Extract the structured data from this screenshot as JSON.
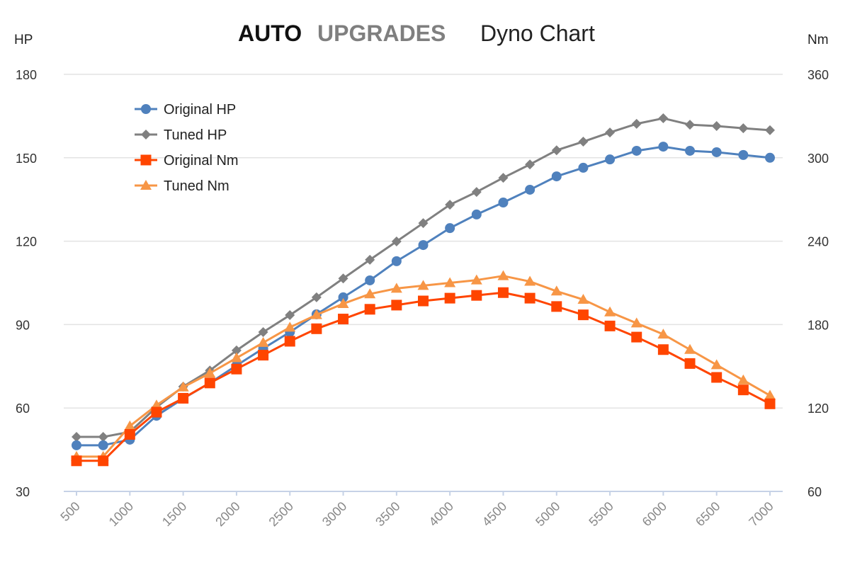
{
  "chart_data": {
    "type": "line",
    "title": {
      "brand_part1": "AUTO",
      "brand_part2": "UPGRADES",
      "text": "Dyno Chart"
    },
    "ylabel_left": "HP",
    "ylabel_right": "Nm",
    "ylim_left": [
      30,
      180
    ],
    "ylim_right": [
      60,
      360
    ],
    "yticks_left": [
      30,
      60,
      90,
      120,
      150,
      180
    ],
    "yticks_right": [
      60,
      120,
      180,
      240,
      300,
      360
    ],
    "xticks": [
      500,
      1000,
      1500,
      2000,
      2500,
      3000,
      3500,
      4000,
      4500,
      5000,
      5500,
      6000,
      6500,
      7000
    ],
    "x": [
      500,
      750,
      1000,
      1250,
      1500,
      1750,
      2000,
      2250,
      2500,
      2750,
      3000,
      3250,
      3500,
      3750,
      4000,
      4250,
      4500,
      4750,
      5000,
      5250,
      5500,
      5750,
      6000,
      6250,
      6500,
      6750,
      7000
    ],
    "grid": "horizontal",
    "legend_position": "top-left",
    "series": [
      {
        "name": "Original HP",
        "axis": "left",
        "color": "#4f81bd",
        "marker": "circle",
        "values": [
          46.6,
          46.6,
          48.6,
          57.2,
          63.4,
          69,
          75.3,
          81.4,
          87.3,
          93.7,
          99.8,
          105.9,
          112.8,
          118.6,
          124.7,
          129.6,
          133.9,
          138.5,
          143.3,
          146.4,
          149.4,
          152.5,
          154,
          152.5,
          152,
          151,
          150
        ]
      },
      {
        "name": "Tuned HP",
        "axis": "left",
        "color": "#808080",
        "marker": "diamond",
        "values": [
          49.6,
          49.6,
          51.4,
          60.3,
          67.7,
          73.5,
          80.7,
          87.3,
          93.4,
          99.8,
          106.6,
          113.3,
          119.9,
          126.5,
          133.1,
          137.7,
          142.8,
          147.6,
          152.7,
          155.8,
          159.1,
          162.2,
          164.2,
          161.9,
          161.4,
          160.6,
          159.9
        ]
      },
      {
        "name": "Original Nm",
        "axis": "right",
        "color": "#ff4500",
        "marker": "square",
        "values": [
          82,
          82,
          101,
          117,
          127,
          138,
          148,
          158,
          168,
          177,
          184,
          191,
          194,
          197,
          199,
          201,
          203,
          199,
          193,
          187,
          179,
          171,
          162,
          152,
          142,
          133,
          123
        ]
      },
      {
        "name": "Tuned Nm",
        "axis": "right",
        "color": "#f79646",
        "marker": "triangle",
        "values": [
          85,
          85,
          107,
          122,
          135,
          145,
          156,
          167,
          178,
          187,
          195,
          202,
          206,
          208,
          210,
          212,
          215,
          211,
          204,
          198,
          189,
          181,
          173,
          162,
          151,
          140,
          129
        ]
      }
    ]
  }
}
